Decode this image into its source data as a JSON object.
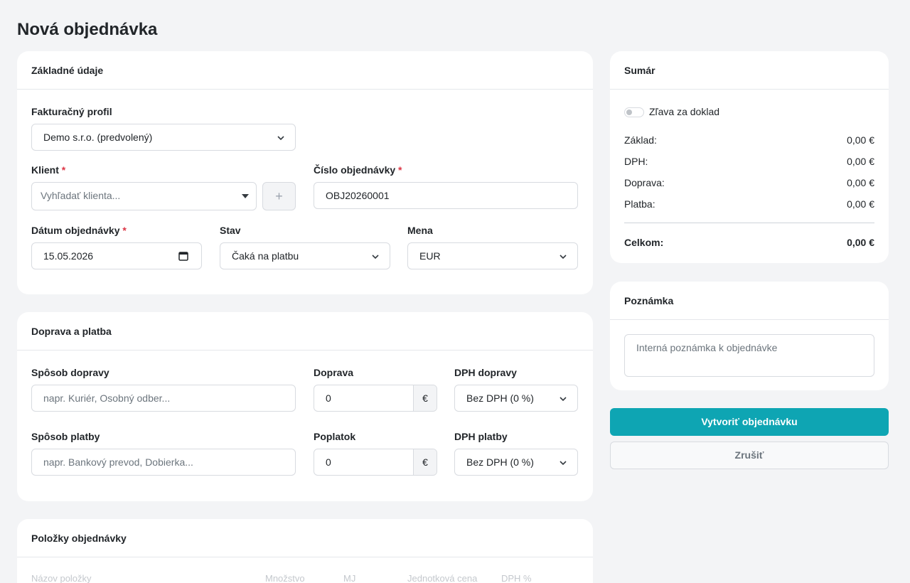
{
  "title": "Nová objednávka",
  "basic": {
    "heading": "Základné údaje",
    "profile_label": "Fakturačný profil",
    "profile_value": "Demo s.r.o. (predvolený)",
    "client_label": "Klient",
    "required": "*",
    "client_placeholder": "Vyhľadať klienta...",
    "add": "+",
    "number_label": "Číslo objednávky",
    "number_value": "OBJ20260001",
    "date_label": "Dátum objednávky",
    "date_value": "15.05.2026",
    "status_label": "Stav",
    "status_value": "Čaká na platbu",
    "currency_label": "Mena",
    "currency_value": "EUR"
  },
  "shipping": {
    "heading": "Doprava a platba",
    "currency_symbol": "€",
    "method_label": "Spôsob dopravy",
    "method_placeholder": "napr. Kuriér, Osobný odber...",
    "cost_label": "Doprava",
    "cost_value": "0",
    "cost_vat_label": "DPH dopravy",
    "cost_vat_value": "Bez DPH (0 %)",
    "payment_label": "Spôsob platby",
    "payment_placeholder": "napr. Bankový prevod, Dobierka...",
    "fee_label": "Poplatok",
    "fee_value": "0",
    "fee_vat_label": "DPH platby",
    "fee_vat_value": "Bez DPH (0 %)"
  },
  "items": {
    "heading": "Položky objednávky",
    "columns": [
      "Názov položky",
      "Množstvo",
      "MJ",
      "Jednotková cena",
      "DPH %"
    ]
  },
  "summary": {
    "heading": "Sumár",
    "discount": "Zľava za doklad",
    "rows": [
      {
        "label": "Základ:",
        "value": "0,00 €"
      },
      {
        "label": "DPH:",
        "value": "0,00 €"
      },
      {
        "label": "Doprava:",
        "value": "0,00 €"
      },
      {
        "label": "Platba:",
        "value": "0,00 €"
      }
    ],
    "total": {
      "label": "Celkom:",
      "value": "0,00 €"
    }
  },
  "note": {
    "heading": "Poznámka",
    "placeholder": "Interná poznámka k objednávke"
  },
  "actions": {
    "submit": "Vytvoriť objednávku",
    "cancel": "Zrušiť"
  }
}
